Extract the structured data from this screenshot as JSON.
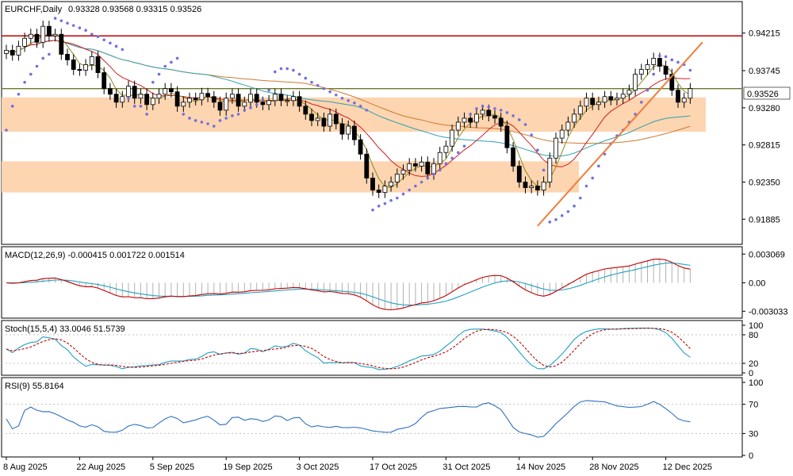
{
  "chart_data": {
    "type": "candlestick",
    "symbol": "EURCHF,Daily",
    "ohlc_header": "0.93328 0.93568 0.93315 0.93526",
    "current_price": "0.93526",
    "price_ylim": [
      0.916,
      0.9455
    ],
    "price_ticks": [
      "0.94215",
      "0.93745",
      "0.93280",
      "0.92815",
      "0.92350",
      "0.91885"
    ],
    "resistance_level": 0.9418,
    "dates": [
      "8 Aug 2025",
      "22 Aug 2025",
      "5 Sep 2025",
      "19 Sep 2025",
      "3 Oct 2025",
      "17 Oct 2025",
      "31 Oct 2025",
      "14 Nov 2025",
      "28 Nov 2025",
      "12 Dec 2025"
    ],
    "closes": [
      0.94,
      0.9394,
      0.9405,
      0.9415,
      0.942,
      0.941,
      0.943,
      0.9418,
      0.942,
      0.9395,
      0.9388,
      0.9376,
      0.9375,
      0.9382,
      0.9392,
      0.9372,
      0.9352,
      0.9345,
      0.9335,
      0.9342,
      0.9355,
      0.934,
      0.9345,
      0.9332,
      0.934,
      0.9345,
      0.9352,
      0.9348,
      0.933,
      0.9335,
      0.934,
      0.9338,
      0.9346,
      0.9342,
      0.9335,
      0.9325,
      0.934,
      0.9345,
      0.933,
      0.9335,
      0.9345,
      0.9335,
      0.9332,
      0.9337,
      0.9345,
      0.9337,
      0.9337,
      0.9342,
      0.933,
      0.932,
      0.9312,
      0.9315,
      0.9305,
      0.932,
      0.9308,
      0.9295,
      0.9305,
      0.9288,
      0.927,
      0.924,
      0.9225,
      0.9222,
      0.923,
      0.9235,
      0.9245,
      0.925,
      0.9258,
      0.9255,
      0.926,
      0.9245,
      0.9258,
      0.9272,
      0.928,
      0.93,
      0.931,
      0.9315,
      0.931,
      0.932,
      0.9325,
      0.9318,
      0.9315,
      0.9305,
      0.9278,
      0.9255,
      0.9235,
      0.9228,
      0.923,
      0.9225,
      0.9235,
      0.9265,
      0.929,
      0.93,
      0.931,
      0.932,
      0.933,
      0.934,
      0.9332,
      0.9335,
      0.9342,
      0.9338,
      0.934,
      0.9345,
      0.935,
      0.937,
      0.9376,
      0.9382,
      0.939,
      0.938,
      0.937,
      0.935,
      0.9335,
      0.934,
      0.9352
    ],
    "parabolic_sar": [
      0.93,
      0.933,
      0.9345,
      0.936,
      0.937,
      0.938,
      0.939,
      0.9395,
      0.944,
      0.9437,
      0.9434,
      0.9431,
      0.9428,
      0.9425,
      0.942,
      0.9417,
      0.9413,
      0.9409,
      0.9405,
      0.9401,
      0.934,
      0.933,
      0.933,
      0.932,
      0.936,
      0.937,
      0.938,
      0.9385,
      0.939,
      0.932,
      0.9315,
      0.9312,
      0.931,
      0.9308,
      0.9305,
      0.9312,
      0.9315,
      0.9318,
      0.932,
      0.9325,
      0.9328,
      0.9332,
      0.9338,
      0.935,
      0.9373,
      0.9377,
      0.9377,
      0.9375,
      0.937,
      0.9365,
      0.936,
      0.9356,
      0.9352,
      0.9348,
      0.9344,
      0.934,
      0.9337,
      0.9334,
      0.933,
      0.9325,
      0.92,
      0.9205,
      0.9208,
      0.9212,
      0.9215,
      0.922,
      0.9225,
      0.923,
      0.9235,
      0.924,
      0.9245,
      0.925,
      0.9258,
      0.9265,
      0.9272,
      0.928,
      0.932,
      0.9327,
      0.933,
      0.9329,
      0.9327,
      0.9325,
      0.9322,
      0.9318,
      0.9313,
      0.9307,
      0.9294,
      0.9275,
      0.925,
      0.9185,
      0.9188,
      0.9193,
      0.9198,
      0.9205,
      0.9215,
      0.923,
      0.924,
      0.9255,
      0.927,
      0.9283,
      0.9293,
      0.93,
      0.931,
      0.932,
      0.9335,
      0.935,
      0.937,
      0.9393,
      0.9392,
      0.9388,
      0.9385,
      0.9382,
      0.9375
    ],
    "indicators": {
      "macd_label": "MACD(12,26,9) -0.000415 0.001722 0.001514",
      "macd_ticks": [
        "0.003069",
        "0.00",
        "-0.003033"
      ],
      "macd_ylim": [
        -0.0036,
        0.0036
      ],
      "stoch_label": "Stoch(15,5,4) 33.0046 51.5739",
      "stoch_ticks": [
        "100",
        "80",
        "20",
        "0"
      ],
      "rsi_label": "RSI(9) 55.8164",
      "rsi_ticks": [
        "100",
        "70",
        "30",
        "0"
      ]
    }
  },
  "colors": {
    "bull": "#ffffff",
    "bear": "#000000",
    "zone": "#fdd5b0",
    "resistance": "#c00000",
    "current_line": "#6b7a2a",
    "trendline": "#f07d3a",
    "sar": "#7070e0",
    "ma_fast": "#8a8a20",
    "ma_mid": "#d02020",
    "ma_slow": "#d07830",
    "ma_teal": "#30a0b0",
    "macd_line": "#c00000",
    "macd_signal": "#20a0c0",
    "macd_hist": "#b0b0b0",
    "stoch_main": "#20a0c0",
    "stoch_signal": "#c00000",
    "rsi": "#3070c0"
  }
}
